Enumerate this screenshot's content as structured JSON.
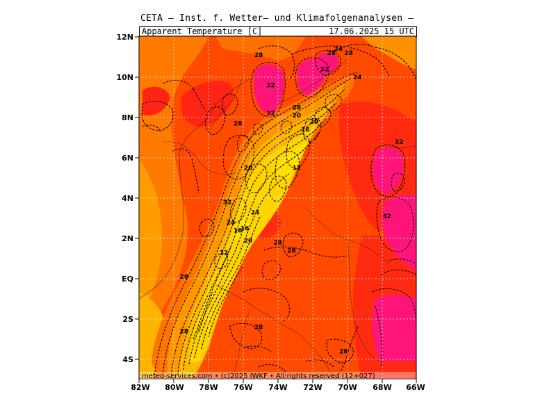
{
  "header": {
    "title": "CETA — Inst. f. Wetter— und Klimafolgenanalysen —",
    "variable": "Apparent_Temperature [C]",
    "valid_time": "17.06.2025 15 UTC"
  },
  "axes": {
    "lat_labels": [
      "12N",
      "10N",
      "8N",
      "6N",
      "4N",
      "2N",
      "EQ",
      "2S",
      "4S"
    ],
    "lon_labels": [
      "82W",
      "80W",
      "78W",
      "76W",
      "74W",
      "72W",
      "70W",
      "68W",
      "66W"
    ]
  },
  "credit": "meteo-services.com • (c)2025 IWKF • All rights reserved (12+027)",
  "contour_labels": [
    {
      "text": "28",
      "lon": -75.1,
      "lat": 11.1
    },
    {
      "text": "24",
      "lon": -70.5,
      "lat": 11.4
    },
    {
      "text": "28",
      "lon": -70.9,
      "lat": 11.2
    },
    {
      "text": "28",
      "lon": -69.9,
      "lat": 11.2
    },
    {
      "text": "32",
      "lon": -71.3,
      "lat": 10.4
    },
    {
      "text": "24",
      "lon": -69.4,
      "lat": 10.0
    },
    {
      "text": "32",
      "lon": -74.4,
      "lat": 9.6
    },
    {
      "text": "28",
      "lon": -72.9,
      "lat": 8.5
    },
    {
      "text": "32",
      "lon": -74.4,
      "lat": 8.2
    },
    {
      "text": "20",
      "lon": -72.9,
      "lat": 8.1
    },
    {
      "text": "20",
      "lon": -71.9,
      "lat": 7.8
    },
    {
      "text": "16",
      "lon": -72.4,
      "lat": 7.4
    },
    {
      "text": "28",
      "lon": -76.3,
      "lat": 7.7
    },
    {
      "text": "32",
      "lon": -67.0,
      "lat": 6.8
    },
    {
      "text": "20",
      "lon": -75.7,
      "lat": 5.5
    },
    {
      "text": "12",
      "lon": -72.9,
      "lat": 5.5
    },
    {
      "text": "32",
      "lon": -76.9,
      "lat": 3.8
    },
    {
      "text": "24",
      "lon": -75.3,
      "lat": 3.3
    },
    {
      "text": "24",
      "lon": -76.7,
      "lat": 2.8
    },
    {
      "text": "16",
      "lon": -76.3,
      "lat": 2.4
    },
    {
      "text": "16",
      "lon": -75.9,
      "lat": 2.5
    },
    {
      "text": "32",
      "lon": -67.7,
      "lat": 3.1
    },
    {
      "text": "20",
      "lon": -75.7,
      "lat": 1.9
    },
    {
      "text": "28",
      "lon": -74.0,
      "lat": 1.8
    },
    {
      "text": "28",
      "lon": -73.2,
      "lat": 1.4
    },
    {
      "text": "12",
      "lon": -77.1,
      "lat": 1.3
    },
    {
      "text": "28",
      "lon": -79.4,
      "lat": 0.1
    },
    {
      "text": "28",
      "lon": -75.1,
      "lat": -2.4
    },
    {
      "text": "28",
      "lon": -79.4,
      "lat": -2.6
    },
    {
      "text": "28",
      "lon": -70.2,
      "lat": -3.6
    }
  ],
  "colors": {
    "deep_orange": "#ff3c00",
    "orange": "#ff6e00",
    "light_orange": "#ff9a00",
    "amber": "#ffbe00",
    "yellow": "#ffd800",
    "red": "#ff1e1e",
    "magenta": "#ff147a"
  }
}
